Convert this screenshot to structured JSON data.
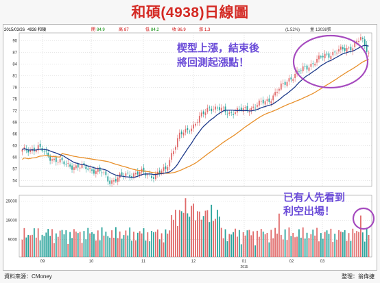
{
  "title": "和碩(4938)日線圖",
  "footer": {
    "source": "資料來源：CMoney",
    "author": "整理：翁偉捷"
  },
  "header_bar": {
    "date": "2015/03/26",
    "label": "4938 和碩",
    "open_label": "開",
    "open": "84.9",
    "high_label": "高",
    "high": "87",
    "low_label": "低",
    "low": "84.2",
    "close_label": "收",
    "close": "86.9",
    "change_label": "漲",
    "change": "1.3",
    "pct": "(1.52%)",
    "volume_label": "量",
    "volume": "13038張"
  },
  "annotations": {
    "pattern": [
      "楔型上漲，結束後",
      "將回測起漲點！"
    ],
    "warning": [
      "已有人先看到",
      "利空出場！"
    ]
  },
  "colors": {
    "up": "#e06a6a",
    "down": "#2aa39b",
    "ma_short": "#1e3a8a",
    "ma_long": "#e8902b",
    "highlight": "#a64bbf",
    "annotation": "#6a4bd8"
  },
  "chart_data": [
    {
      "type": "candlestick",
      "y_ticks": [
        54,
        57,
        60,
        63,
        66,
        69,
        72,
        75,
        78,
        81,
        84,
        87,
        90
      ],
      "ylim": [
        52.5,
        92
      ],
      "x_month_labels": [
        "09",
        "10",
        "11",
        "12",
        "01",
        "02",
        "03"
      ],
      "year_label": "2015",
      "grid": true,
      "moving_averages": [
        "short",
        "long"
      ]
    },
    {
      "type": "bar",
      "y_ticks": [
        "9000",
        "19000",
        "29000"
      ],
      "ylim": [
        0,
        32000
      ],
      "colored_by": "candle direction"
    }
  ]
}
